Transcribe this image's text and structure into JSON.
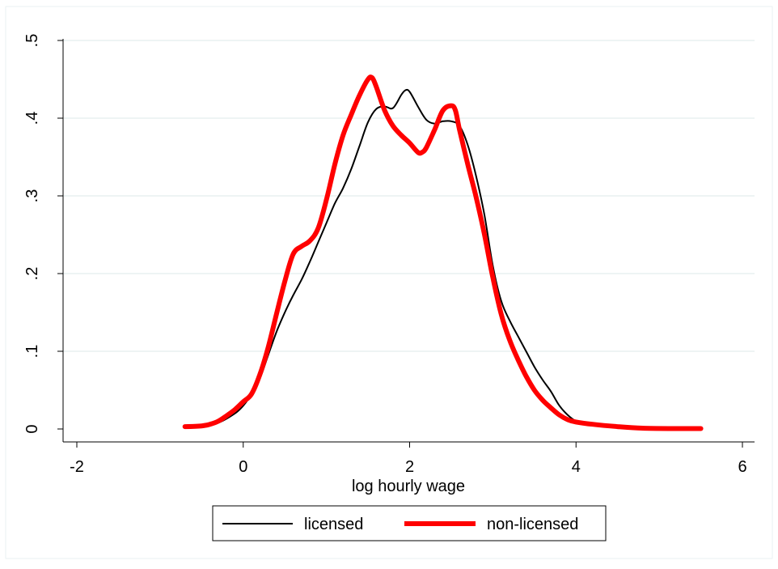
{
  "chart_data": {
    "type": "line",
    "title": "",
    "xlabel": "log hourly wage",
    "ylabel": "",
    "xlim": [
      -2,
      6
    ],
    "ylim": [
      0,
      0.5
    ],
    "xticks": [
      -2,
      0,
      2,
      4,
      6
    ],
    "xtick_labels": [
      "-2",
      "0",
      "2",
      "4",
      "6"
    ],
    "yticks": [
      0,
      0.1,
      0.2,
      0.3,
      0.4,
      0.5
    ],
    "ytick_labels": [
      "0",
      ".1",
      ".2",
      ".3",
      ".4",
      ".5"
    ],
    "grid": "horizontal",
    "legend_position": "bottom",
    "series": [
      {
        "name": "licensed",
        "color": "#000000",
        "x": [
          -0.7,
          -0.5,
          -0.3,
          -0.1,
          0.0,
          0.1,
          0.2,
          0.3,
          0.4,
          0.5,
          0.6,
          0.7,
          0.8,
          0.9,
          1.0,
          1.1,
          1.2,
          1.3,
          1.4,
          1.5,
          1.6,
          1.7,
          1.8,
          1.9,
          1.95,
          2.0,
          2.1,
          2.2,
          2.3,
          2.4,
          2.5,
          2.6,
          2.7,
          2.8,
          2.9,
          3.0,
          3.1,
          3.2,
          3.3,
          3.4,
          3.5,
          3.6,
          3.7,
          3.8,
          3.9,
          4.0,
          4.1,
          4.2,
          4.3,
          4.5,
          4.7
        ],
        "y": [
          0.004,
          0.005,
          0.008,
          0.02,
          0.03,
          0.045,
          0.065,
          0.095,
          0.125,
          0.15,
          0.172,
          0.192,
          0.215,
          0.24,
          0.265,
          0.29,
          0.31,
          0.335,
          0.365,
          0.395,
          0.412,
          0.415,
          0.413,
          0.43,
          0.436,
          0.434,
          0.415,
          0.398,
          0.393,
          0.396,
          0.396,
          0.39,
          0.365,
          0.325,
          0.275,
          0.21,
          0.165,
          0.14,
          0.12,
          0.1,
          0.08,
          0.063,
          0.048,
          0.03,
          0.018,
          0.01,
          0.006,
          0.005,
          0.004,
          0.003,
          0.002
        ]
      },
      {
        "name": "non-licensed",
        "color": "#ff0000",
        "x": [
          -0.7,
          -0.5,
          -0.4,
          -0.3,
          -0.2,
          -0.1,
          0.0,
          0.1,
          0.2,
          0.3,
          0.4,
          0.5,
          0.6,
          0.7,
          0.8,
          0.9,
          1.0,
          1.1,
          1.2,
          1.3,
          1.4,
          1.5,
          1.55,
          1.6,
          1.7,
          1.8,
          1.9,
          2.0,
          2.1,
          2.15,
          2.2,
          2.3,
          2.4,
          2.5,
          2.55,
          2.6,
          2.7,
          2.8,
          2.9,
          3.0,
          3.1,
          3.2,
          3.3,
          3.4,
          3.5,
          3.6,
          3.7,
          3.8,
          3.9,
          4.0,
          4.2,
          4.5,
          4.8,
          5.2,
          5.5
        ],
        "y": [
          0.003,
          0.004,
          0.006,
          0.01,
          0.017,
          0.025,
          0.035,
          0.045,
          0.07,
          0.105,
          0.148,
          0.19,
          0.225,
          0.235,
          0.242,
          0.258,
          0.295,
          0.34,
          0.378,
          0.405,
          0.43,
          0.45,
          0.452,
          0.44,
          0.41,
          0.39,
          0.378,
          0.368,
          0.356,
          0.356,
          0.362,
          0.385,
          0.41,
          0.416,
          0.41,
          0.385,
          0.34,
          0.298,
          0.25,
          0.195,
          0.148,
          0.115,
          0.09,
          0.068,
          0.05,
          0.037,
          0.027,
          0.018,
          0.012,
          0.009,
          0.006,
          0.003,
          0.001,
          0.0005,
          0.0005
        ]
      }
    ]
  }
}
